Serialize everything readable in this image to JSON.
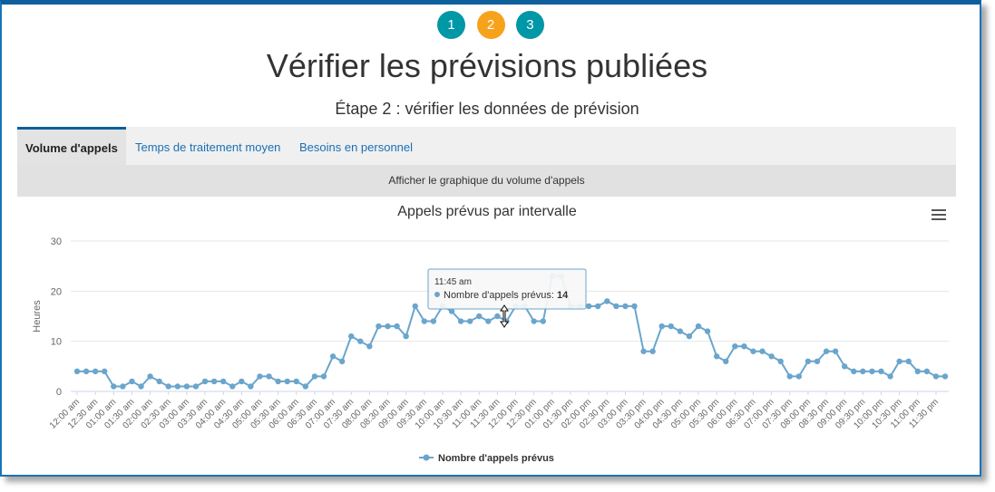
{
  "steps": [
    {
      "label": "1",
      "color": "#0097a7"
    },
    {
      "label": "2",
      "color": "#f7a21b"
    },
    {
      "label": "3",
      "color": "#0097a7"
    }
  ],
  "page": {
    "title": "Vérifier les prévisions publiées",
    "subtitle": "Étape 2 : vérifier les données de prévision"
  },
  "tabs": {
    "volume": "Volume d'appels",
    "aht": "Temps de traitement moyen",
    "staffing": "Besoins en personnel"
  },
  "show_chart_label": "Afficher le graphique du volume d'appels",
  "menu_icon": "hamburger-menu-icon",
  "tooltip": {
    "time": "11:45 am",
    "series": "Nombre d'appels prévus",
    "value": "14"
  },
  "chart_data": {
    "type": "line",
    "title": "Appels prévus par intervalle",
    "ylabel": "Heures",
    "xlabel": "",
    "ylim": [
      0,
      30
    ],
    "yticks": [
      0,
      10,
      20,
      30
    ],
    "line_color": "#6aa5cc",
    "legend": "Nombre d'appels prévus",
    "tick_labels": [
      "12:00 am",
      "12:30 am",
      "01:00 am",
      "01:30 am",
      "02:00 am",
      "02:30 am",
      "03:00 am",
      "03:30 am",
      "04:00 am",
      "04:30 am",
      "05:00 am",
      "05:30 am",
      "06:00 am",
      "06:30 am",
      "07:00 am",
      "07:30 am",
      "08:00 am",
      "08:30 am",
      "09:00 am",
      "09:30 am",
      "10:00 am",
      "10:30 am",
      "11:00 am",
      "11:30 am",
      "12:00 pm",
      "12:30 pm",
      "01:00 pm",
      "01:30 pm",
      "02:00 pm",
      "02:30 pm",
      "03:00 pm",
      "03:30 pm",
      "04:00 pm",
      "04:30 pm",
      "05:00 pm",
      "05:30 pm",
      "06:00 pm",
      "06:30 pm",
      "07:00 pm",
      "07:30 pm",
      "08:00 pm",
      "08:30 pm",
      "09:00 pm",
      "09:30 pm",
      "10:00 pm",
      "10:30 pm",
      "11:00 pm",
      "11:30 pm"
    ],
    "series": [
      {
        "name": "Nombre d'appels prévus",
        "values": [
          4,
          4,
          4,
          4,
          1,
          1,
          2,
          1,
          3,
          2,
          1,
          1,
          1,
          1,
          2,
          2,
          2,
          1,
          2,
          1,
          3,
          3,
          2,
          2,
          2,
          1,
          3,
          3,
          7,
          6,
          11,
          10,
          9,
          13,
          13,
          13,
          11,
          17,
          14,
          14,
          17,
          16,
          14,
          14,
          15,
          14,
          15,
          14,
          17,
          17,
          14,
          14,
          23,
          23,
          17,
          17,
          17,
          17,
          18,
          17,
          17,
          17,
          8,
          8,
          13,
          13,
          12,
          11,
          13,
          12,
          7,
          6,
          9,
          9,
          8,
          8,
          7,
          6,
          3,
          3,
          6,
          6,
          8,
          8,
          5,
          4,
          4,
          4,
          4,
          3,
          6,
          6,
          4,
          4,
          3,
          3
        ]
      }
    ]
  }
}
